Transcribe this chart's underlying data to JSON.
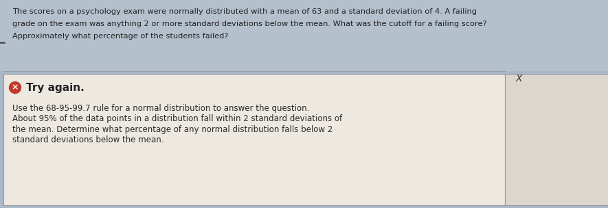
{
  "bg_color_bluegray": "#a8b8c8",
  "bg_color_topbar": "#b0bcc8",
  "bg_color_dialog": "#ede8e0",
  "bg_color_right_panel": "#dbd6ce",
  "border_color": "#999999",
  "question_text_line1": "The scores on a psychology exam were normally distributed with a mean of 63 and a standard deviation of 4. A failing",
  "question_text_line2": "grade on the exam was anything 2 or more standard deviations below the mean. What was the cutoff for a failing score?",
  "question_text_line3": "Approximately what percentage of the students failed?",
  "try_again_text": "Try again.",
  "hint_line1": "Use the 68-95-99.7 rule for a normal distribution to answer the question.",
  "hint_line2": "About 95% of the data points in a distribution fall within 2 standard deviations of",
  "hint_line3": "the mean. Determine what percentage of any normal distribution falls below 2",
  "hint_line4": "standard deviations below the mean.",
  "x_label": "X",
  "icon_color": "#c0392b",
  "text_color_dark": "#222222",
  "text_color_medium": "#2a2a2a",
  "dash_color": "#555555"
}
